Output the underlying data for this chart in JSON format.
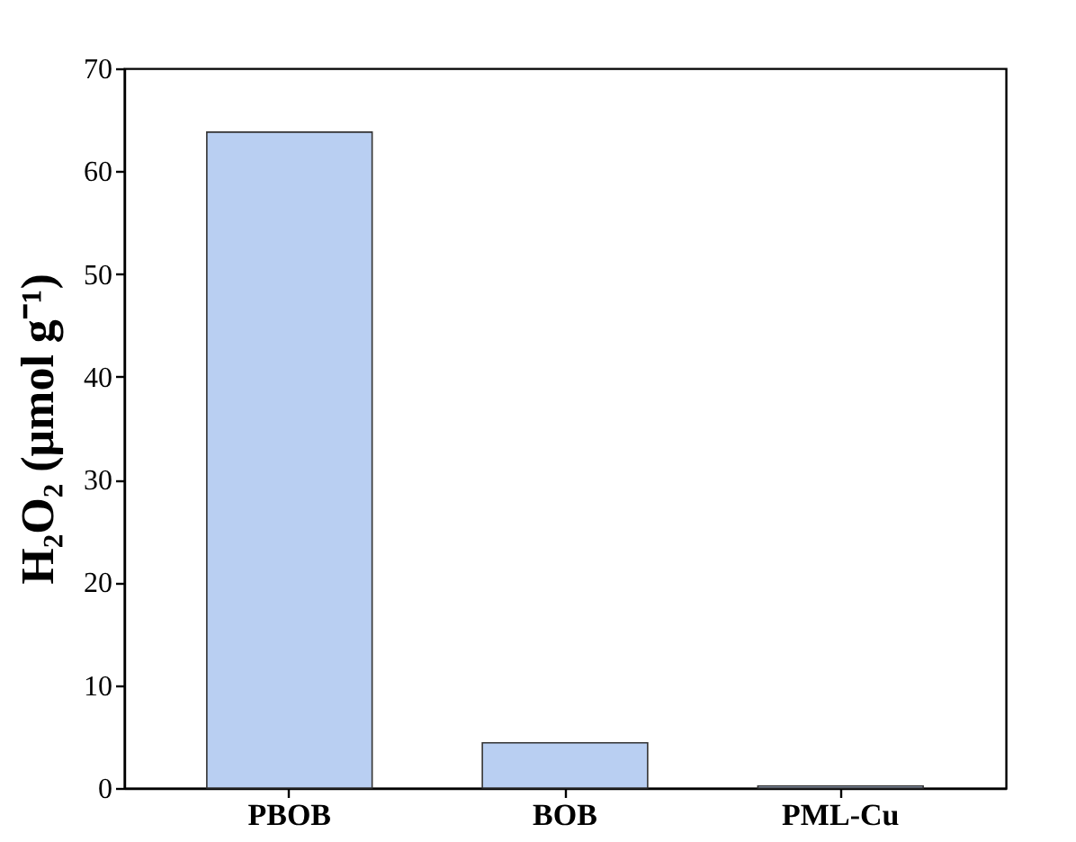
{
  "chart_data": {
    "type": "bar",
    "ylabel": "H₂O₂ (μmol g⁻¹)",
    "categories": [
      "PBOB",
      "BOB",
      "PML-Cu"
    ],
    "values": [
      63.8,
      4.4,
      0.2
    ],
    "color": "#b9cff2",
    "ylim": [
      0,
      70
    ],
    "yticks": [
      0,
      10,
      20,
      30,
      40,
      50,
      60,
      70
    ],
    "grid": false
  }
}
